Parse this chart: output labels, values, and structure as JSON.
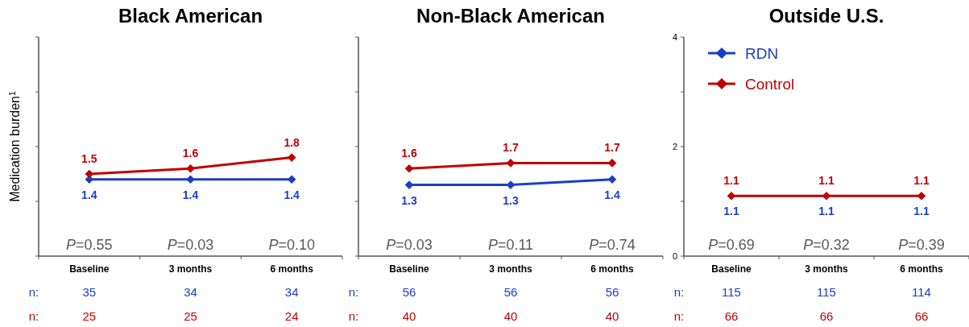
{
  "chart_data": [
    {
      "type": "line",
      "title": "Black American",
      "ylabel": "Medication burden$^{1}$",
      "categories": [
        "Baseline",
        "3 months",
        "6 months"
      ],
      "series": [
        {
          "color": "#1a3fc4",
          "values": [
            1.4,
            1.4,
            1.4
          ]
        },
        {
          "color": "#c00000",
          "values": [
            1.5,
            1.6,
            1.8
          ]
        }
      ],
      "ylim": [
        0,
        4
      ],
      "yticks": [
        {
          "value": 0,
          "label": null
        },
        {
          "value": 1,
          "label": null
        },
        {
          "value": 2,
          "label": null
        },
        {
          "value": 3,
          "label": null
        },
        {
          "value": 4,
          "label": null
        }
      ],
      "tick_labels": "x",
      "marker": "diamond",
      "data_labels": true,
      "legend": false,
      "annotations": [
        "P=0.55",
        "P=0.03",
        "P=0.10",
        "n:",
        "35",
        "34",
        "34",
        "n:",
        "25",
        "25",
        "24"
      ]
    },
    {
      "type": "line",
      "title": "Non-Black American",
      "categories": [
        "Baseline",
        "3 months",
        "6 months"
      ],
      "series": [
        {
          "color": "#1a3fc4",
          "values": [
            1.3,
            1.3,
            1.4
          ]
        },
        {
          "color": "#c00000",
          "values": [
            1.6,
            1.7,
            1.7
          ]
        }
      ],
      "ylim": [
        0,
        4
      ],
      "yticks": [
        {
          "value": 0,
          "label": null
        },
        {
          "value": 1,
          "label": null
        },
        {
          "value": 2,
          "label": null
        },
        {
          "value": 3,
          "label": null
        },
        {
          "value": 4,
          "label": null
        }
      ],
      "tick_labels": "x",
      "marker": "diamond",
      "data_labels": true,
      "legend": false,
      "annotations": [
        "P=0.03",
        "P=0.11",
        "P=0.74",
        "n:",
        "56",
        "56",
        "56",
        "n:",
        "40",
        "40",
        "40"
      ]
    },
    {
      "type": "line",
      "title": "Outside U.S.",
      "categories": [
        "Baseline",
        "3 months",
        "6 months"
      ],
      "series": [
        {
          "name": "RDN",
          "color": "#1a3fc4",
          "values": [
            null,
            null,
            null
          ],
          "value_labels": [
            "1.1",
            "1.1",
            "1.1"
          ]
        },
        {
          "name": "Control",
          "color": "#c00000",
          "values": [
            1.1,
            1.1,
            1.1
          ],
          "value_labels": [
            "1.1",
            "1.1",
            "1.1"
          ]
        }
      ],
      "ylim": [
        0,
        4
      ],
      "yticks": [
        0,
        {
          "value": 1,
          "label": null
        },
        2,
        {
          "value": 3,
          "label": null
        },
        4
      ],
      "marker": "diamond",
      "legend": "top left",
      "annotations": [
        "P=0.69",
        "P=0.32",
        "P=0.39",
        "n:",
        "115",
        "115",
        "114",
        "n:",
        "66",
        "66",
        "66"
      ]
    }
  ]
}
